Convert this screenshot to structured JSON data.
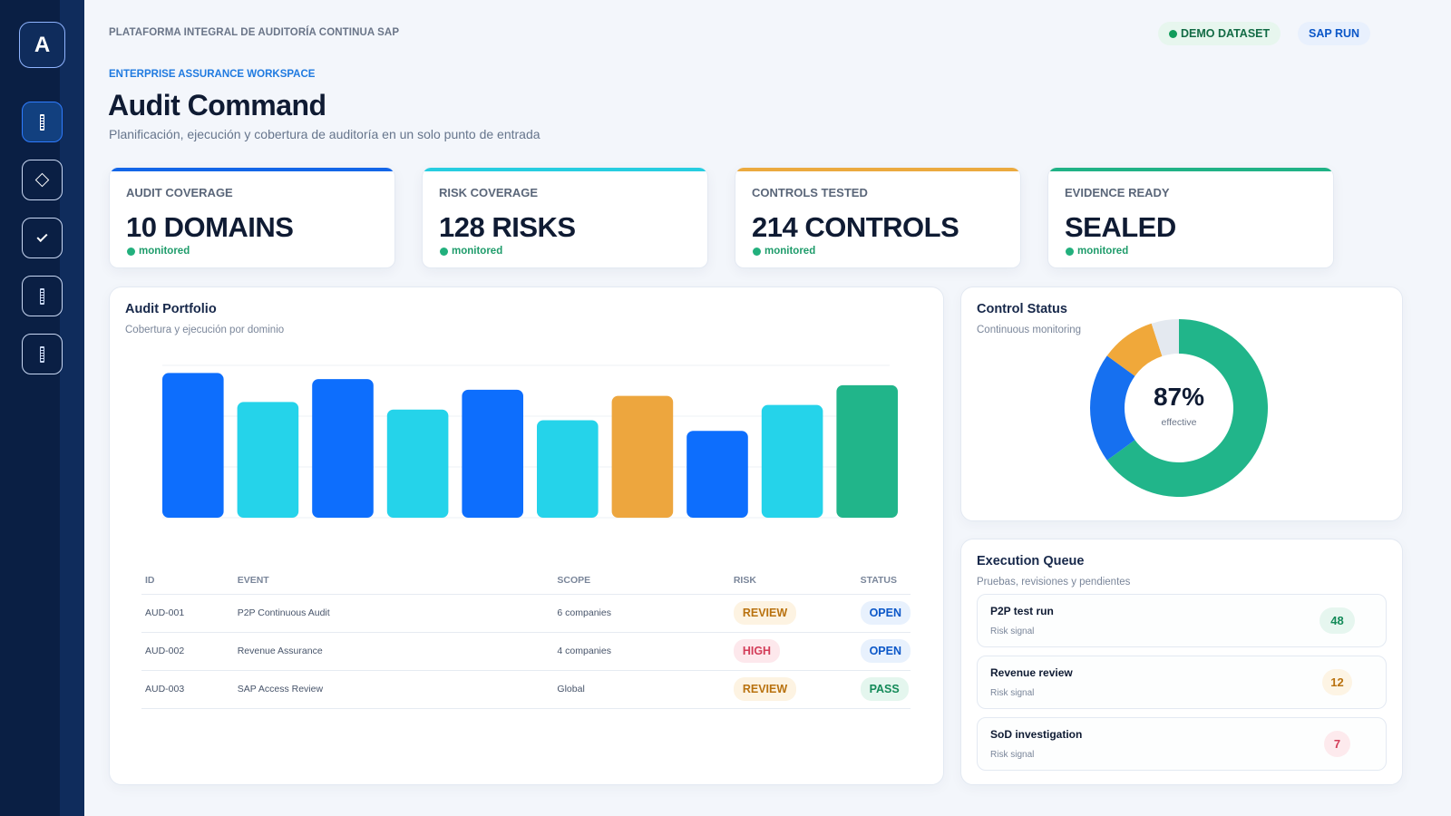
{
  "app": {
    "logo_letter": "A",
    "platform_label": "PLATAFORMA INTEGRAL DE AUDITORÍA CONTINUA SAP",
    "eyebrow": "ENTERPRISE ASSURANCE WORKSPACE",
    "title": "Audit Command",
    "subtitle": "Planificación, ejecución y cobertura de auditoría en un solo punto de entrada"
  },
  "badges": {
    "demo": "DEMO DATASET",
    "sap": "SAP RUN"
  },
  "sidebar": {
    "items": [
      {
        "icon": "bars-icon",
        "active": true
      },
      {
        "icon": "diamond-icon",
        "active": false
      },
      {
        "icon": "check-icon",
        "active": false
      },
      {
        "icon": "bars-icon",
        "active": false
      },
      {
        "icon": "bars-icon",
        "active": false
      }
    ]
  },
  "kpis": [
    {
      "label": "AUDIT COVERAGE",
      "value": "10 DOMAINS",
      "status": "monitored",
      "color": "#1366e8"
    },
    {
      "label": "RISK COVERAGE",
      "value": "128 RISKS",
      "status": "monitored",
      "color": "#27cde0"
    },
    {
      "label": "CONTROLS TESTED",
      "value": "214 CONTROLS",
      "status": "monitored",
      "color": "#ebaa3f"
    },
    {
      "label": "EVIDENCE READY",
      "value": "SEALED",
      "status": "monitored",
      "color": "#20b286"
    }
  ],
  "portfolio": {
    "title": "Audit Portfolio",
    "subtitle": "Cobertura y ejecución por dominio",
    "chart_data": {
      "type": "bar",
      "values": [
        95,
        76,
        91,
        71,
        84,
        64,
        80,
        57,
        74,
        87
      ],
      "colors": [
        "#0d6efd",
        "#25d3ea",
        "#0d6efd",
        "#25d3ea",
        "#0d6efd",
        "#25d3ea",
        "#eda63e",
        "#0d6efd",
        "#25d3ea",
        "#21b58a"
      ],
      "ylim": [
        0,
        100
      ],
      "grid": true
    },
    "table": {
      "headers": {
        "id": "ID",
        "event": "EVENT",
        "scope": "SCOPE",
        "risk": "RISK",
        "status": "STATUS"
      },
      "rows": [
        {
          "id": "AUD-001",
          "event": "P2P Continuous Audit",
          "scope": "6 companies",
          "risk": "REVIEW",
          "status": "OPEN"
        },
        {
          "id": "AUD-002",
          "event": "Revenue Assurance",
          "scope": "4 companies",
          "risk": "HIGH",
          "status": "OPEN"
        },
        {
          "id": "AUD-003",
          "event": "SAP Access Review",
          "scope": "Global",
          "risk": "REVIEW",
          "status": "PASS"
        }
      ]
    }
  },
  "control_status": {
    "title": "Control Status",
    "subtitle": "Continuous monitoring",
    "percent_label": "87%",
    "caption": "effective",
    "chart_data": {
      "type": "pie",
      "segments": [
        {
          "value": 65,
          "color": "#21b58a"
        },
        {
          "value": 20,
          "color": "#1670f0"
        },
        {
          "value": 10,
          "color": "#f0a83a"
        },
        {
          "value": 5,
          "color": "#e4e9f0"
        }
      ]
    }
  },
  "queue": {
    "title": "Execution Queue",
    "subtitle": "Pruebas, revisiones y pendientes",
    "items": [
      {
        "name": "P2P test run",
        "sub": "Risk signal",
        "count": "48",
        "bg": "#e6f6ef",
        "fg": "#138a58"
      },
      {
        "name": "Revenue review",
        "sub": "Risk signal",
        "count": "12",
        "bg": "#fdf4e4",
        "fg": "#b9720f"
      },
      {
        "name": "SoD investigation",
        "sub": "Risk signal",
        "count": "7",
        "bg": "#fdeaed",
        "fg": "#d33c58"
      }
    ]
  }
}
